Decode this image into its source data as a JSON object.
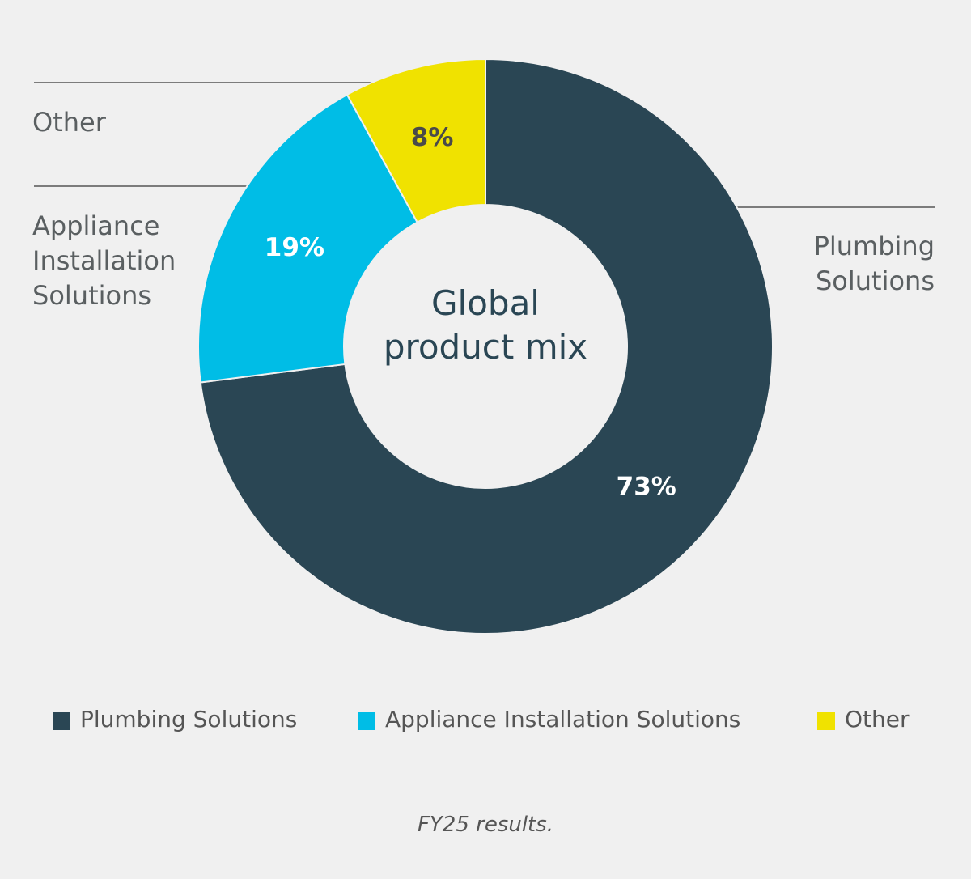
{
  "chart_data": {
    "type": "pie",
    "title": "Global product mix",
    "categories": [
      "Plumbing Solutions",
      "Appliance Installation Solutions",
      "Other"
    ],
    "values": [
      73,
      19,
      8
    ],
    "value_labels": [
      "73%",
      "19%",
      "8%"
    ],
    "colors": [
      "#2a4654",
      "#00bde6",
      "#f0e200"
    ],
    "caption": "FY25 results."
  }
}
